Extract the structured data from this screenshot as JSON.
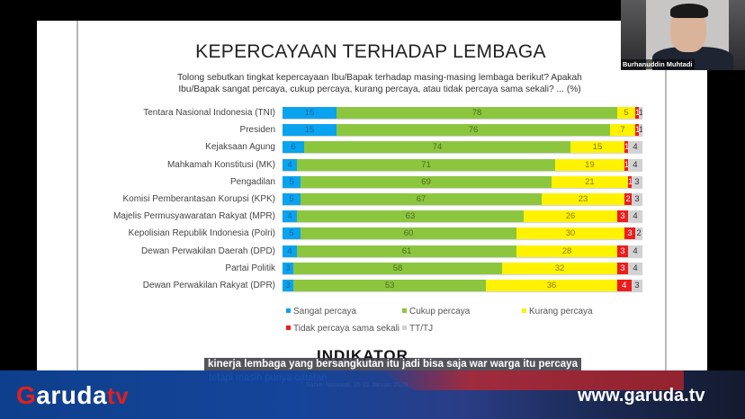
{
  "slide": {
    "title": "KEPERCAYAAN TERHADAP LEMBAGA",
    "question_line1": "Tolong sebutkan tingkat kepercayaan Ibu/Bapak terhadap masing-masing lembaga berikut? Apakah",
    "question_line2": "Ibu/Bapak sangat percaya, cukup percaya, kurang percaya, atau tidak percaya sama sekali? ... (%)",
    "logo": "INDIKATOR"
  },
  "chart_data": {
    "type": "bar",
    "orientation": "horizontal",
    "stacked": true,
    "title": "KEPERCAYAAN TERHADAP LEMBAGA",
    "xlabel": "",
    "ylabel": "",
    "unit": "%",
    "categories": [
      "Tentara Nasional Indonesia (TNI)",
      "Presiden",
      "Kejaksaan Agung",
      "Mahkamah Konstitusi (MK)",
      "Pengadilan",
      "Komisi Pemberantasan Korupsi (KPK)",
      "Majelis Permusyawaratan Rakyat (MPR)",
      "Kepolisian Republik Indonesia (Polri)",
      "Dewan Perwakilan Daerah (DPD)",
      "Partai Politik",
      "Dewan Perwakilan Rakyat (DPR)"
    ],
    "series": [
      {
        "name": "Sangat percaya",
        "color": "#0aa3ee",
        "values": [
          15,
          15,
          6,
          4,
          5,
          5,
          4,
          5,
          4,
          3,
          3
        ]
      },
      {
        "name": "Cukup percaya",
        "color": "#8cc63f",
        "values": [
          78,
          76,
          74,
          71,
          69,
          67,
          63,
          60,
          61,
          58,
          53
        ]
      },
      {
        "name": "Kurang percaya",
        "color": "#fff200",
        "values": [
          5,
          7,
          15,
          19,
          21,
          23,
          26,
          30,
          28,
          32,
          36
        ]
      },
      {
        "name": "Tidak percaya sama sekali",
        "color": "#ee1c1c",
        "values": [
          1,
          1,
          1,
          1,
          1,
          2,
          3,
          3,
          3,
          3,
          4
        ]
      },
      {
        "name": "TT/TJ",
        "color": "#d2d2d2",
        "values": [
          1,
          1,
          4,
          4,
          3,
          3,
          4,
          2,
          4,
          4,
          3
        ]
      }
    ],
    "legend_position": "bottom",
    "grid": false
  },
  "legend": [
    {
      "label": "Sangat percaya",
      "color": "#0aa3ee"
    },
    {
      "label": "Cukup percaya",
      "color": "#8cc63f"
    },
    {
      "label": "Kurang percaya",
      "color": "#fff200"
    },
    {
      "label": "Tidak percaya sama sekali",
      "color": "#ee1c1c"
    },
    {
      "label": "TT/TJ",
      "color": "#d2d2d2"
    }
  ],
  "video_call": {
    "participant_name": "Burhanuddin Muhtadi"
  },
  "broadcast": {
    "brand_g": "G",
    "brand_rest": "aruda",
    "brand_tv": "tv",
    "url": "www.garuda.tv",
    "subtitle": "kinerja lembaga yang bersangkutan itu jadi bisa saja war warga itu percaya",
    "subtitle_next": "tetapi masih punya catatan",
    "footnote": "Survei Nasional, 15-21 Januari 2026"
  }
}
